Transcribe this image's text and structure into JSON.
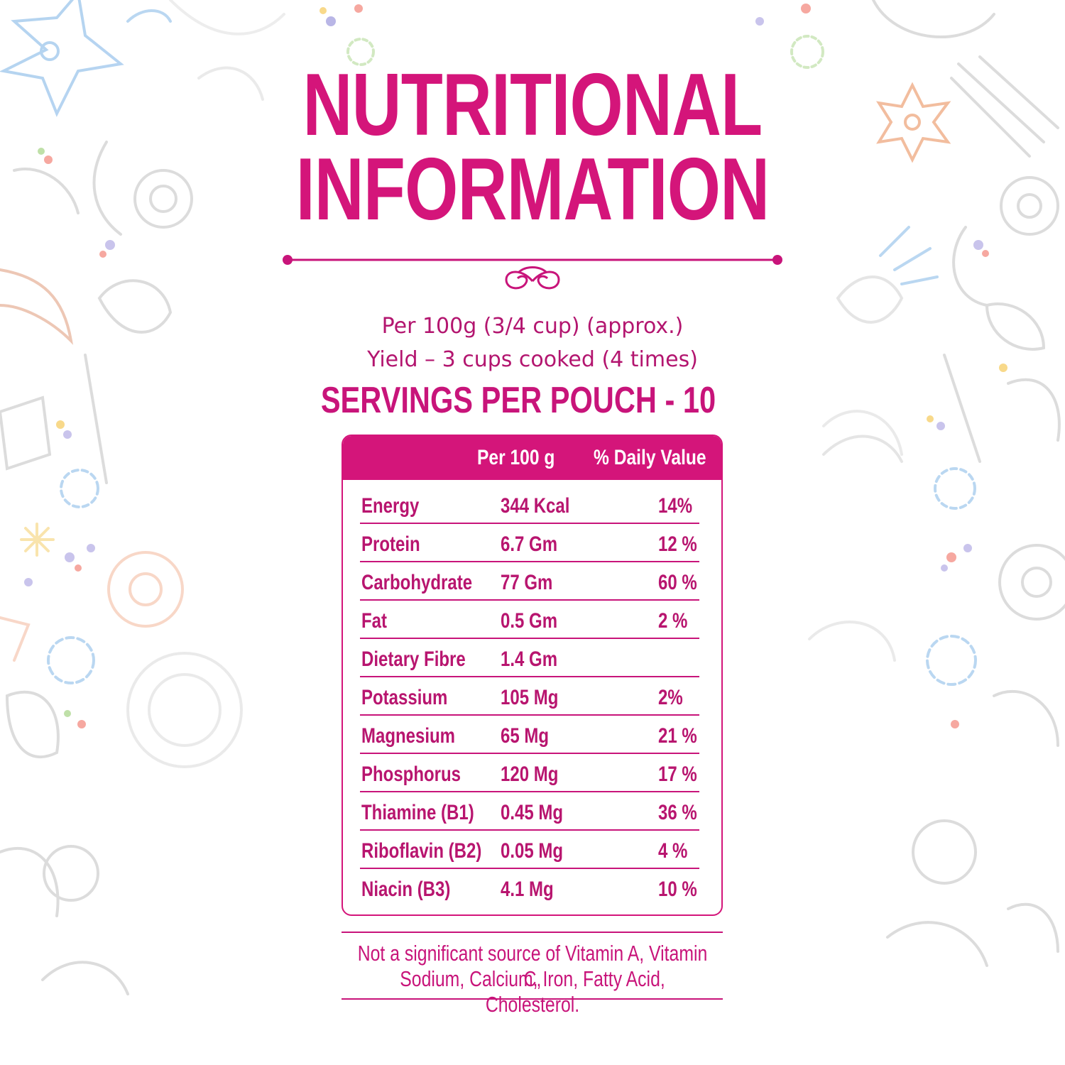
{
  "title": {
    "line1": "NUTRITIONAL",
    "line2": "INFORMATION"
  },
  "serving": {
    "line1": "Per 100g (3/4 cup) (approx.)",
    "line2": "Yield – 3 cups cooked (4 times)",
    "servings": "SERVINGS PER POUCH - 10"
  },
  "table": {
    "headers": {
      "per": "Per 100 g",
      "dv": "% Daily Value"
    },
    "rows": [
      {
        "name": "Energy",
        "value": "344 Kcal",
        "dv": "14%"
      },
      {
        "name": "Protein",
        "value": "6.7 Gm",
        "dv": "12 %"
      },
      {
        "name": "Carbohydrate",
        "value": "77 Gm",
        "dv": "60 %"
      },
      {
        "name": "Fat",
        "value": "0.5 Gm",
        "dv": "2 %"
      },
      {
        "name": "Dietary Fibre",
        "value": "1.4 Gm",
        "dv": ""
      },
      {
        "name": "Potassium",
        "value": "105 Mg",
        "dv": "2%"
      },
      {
        "name": "Magnesium",
        "value": "65 Mg",
        "dv": "21 %"
      },
      {
        "name": "Phosphorus",
        "value": "120 Mg",
        "dv": "17 %"
      },
      {
        "name": "Thiamine (B1)",
        "value": "0.45 Mg",
        "dv": "36 %"
      },
      {
        "name": "Riboflavin (B2)",
        "value": "0.05 Mg",
        "dv": "4 %"
      },
      {
        "name": "Niacin (B3)",
        "value": "4.1 Mg",
        "dv": "10 %"
      }
    ]
  },
  "footnote": {
    "line1": "Not a significant source of Vitamin A, Vitamin C,",
    "line2": "Sodium, Calcium, Iron, Fatty Acid, Cholesterol."
  },
  "colors": {
    "accent": "#d4157a",
    "text": "#b8156f"
  },
  "icons": [
    "flower-doodle-icon",
    "leaf-doodle-icon",
    "lotus-doodle-icon",
    "swirl-ornament-icon"
  ]
}
